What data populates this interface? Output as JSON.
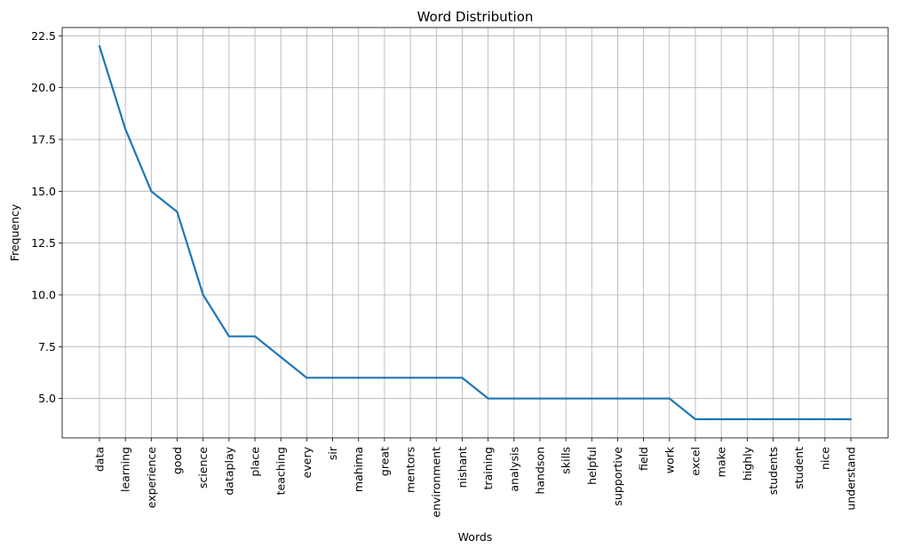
{
  "chart_data": {
    "type": "line",
    "title": "Word Distribution",
    "xlabel": "Words",
    "ylabel": "Frequency",
    "categories": [
      "data",
      "learning",
      "experience",
      "good",
      "science",
      "dataplay",
      "place",
      "teaching",
      "every",
      "sir",
      "mahima",
      "great",
      "mentors",
      "environment",
      "nishant",
      "training",
      "analysis",
      "handson",
      "skills",
      "helpful",
      "supportive",
      "field",
      "work",
      "excel",
      "make",
      "highly",
      "students",
      "student",
      "nice",
      "understand"
    ],
    "series": [
      {
        "values": [
          22,
          18,
          15,
          14,
          10,
          8,
          8,
          7,
          6,
          6,
          6,
          6,
          6,
          6,
          6,
          5,
          5,
          5,
          5,
          5,
          5,
          5,
          5,
          4,
          4,
          4,
          4,
          4,
          4,
          4
        ],
        "color": "#1f77b4"
      }
    ],
    "ylim": [
      3.1,
      22.9
    ],
    "yticks": [
      "5.0",
      "7.5",
      "10.0",
      "12.5",
      "15.0",
      "17.5",
      "20.0",
      "22.5"
    ],
    "grid": true,
    "legend": "none"
  }
}
